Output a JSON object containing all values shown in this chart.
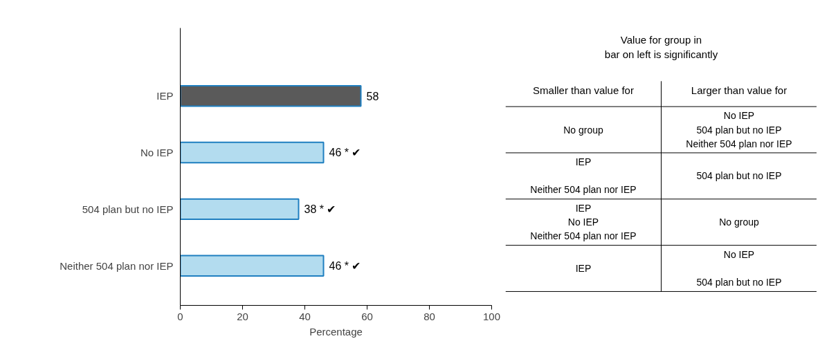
{
  "chart_data": [
    {
      "type": "bar",
      "orientation": "horizontal",
      "categories": [
        "IEP",
        "No IEP",
        "504 plan but no IEP",
        "Neither 504 plan nor IEP"
      ],
      "values": [
        58,
        46,
        38,
        46
      ],
      "colors": [
        "#5a5a5a",
        "#b3dcef",
        "#b3dcef",
        "#b3dcef"
      ],
      "value_labels": [
        "58",
        "46 *    ✔",
        "38 *    ✔",
        "46 *    ✔"
      ],
      "xlim": [
        0,
        100
      ],
      "xticks": [
        0,
        20,
        40,
        60,
        80,
        100
      ],
      "xlabel": "Percentage",
      "grid": false
    },
    {
      "type": "other",
      "title": "Value for group in\nbar on left is significantly",
      "categories": [
        "Smaller than value for",
        "Larger than value for"
      ],
      "cell_labels": [
        [
          "No group",
          "No IEP\n504 plan but no IEP\nNeither 504 plan nor IEP"
        ],
        [
          "IEP\n\nNeither 504 plan nor IEP",
          "504 plan but no IEP"
        ],
        [
          "IEP\nNo IEP\nNeither 504 plan nor IEP",
          "No group"
        ],
        [
          "IEP",
          "No IEP\n\n504 plan but no IEP"
        ]
      ]
    }
  ]
}
